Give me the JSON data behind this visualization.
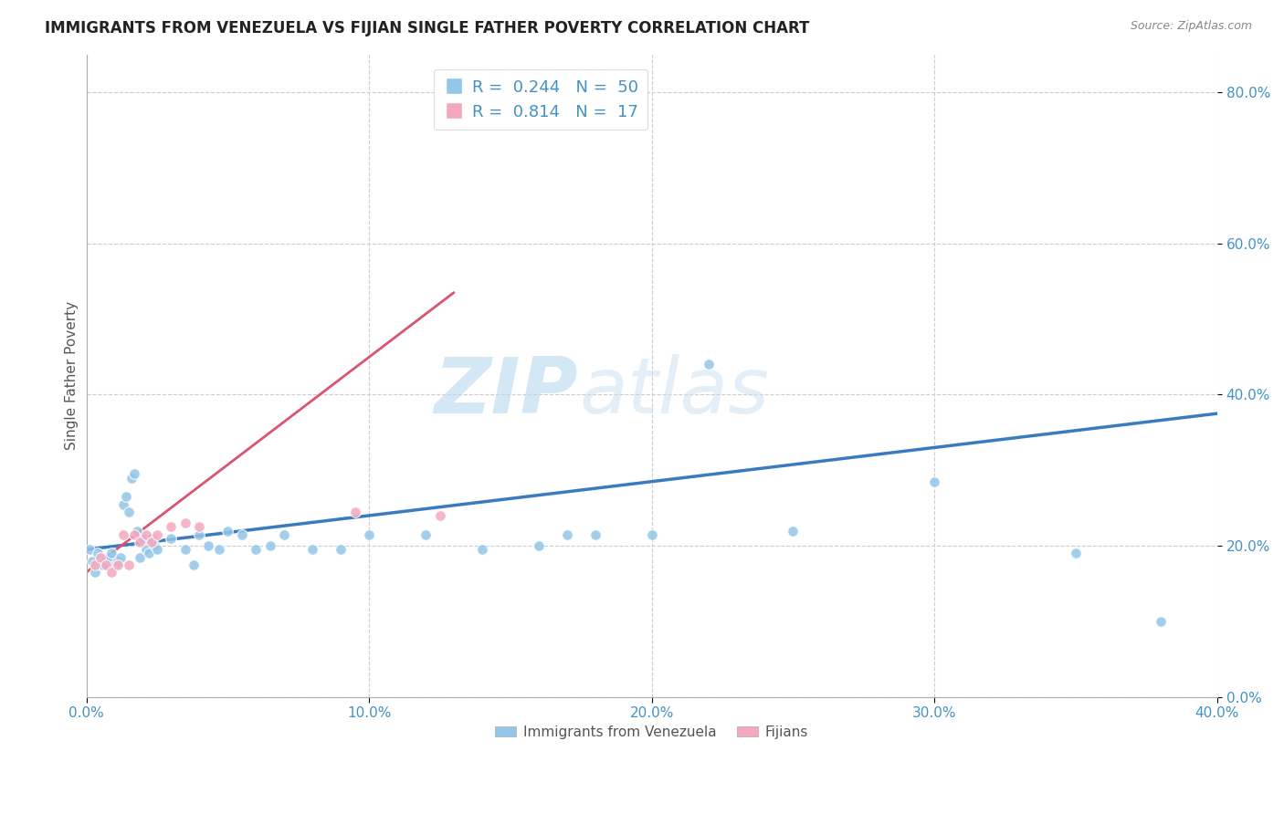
{
  "title": "IMMIGRANTS FROM VENEZUELA VS FIJIAN SINGLE FATHER POVERTY CORRELATION CHART",
  "source": "Source: ZipAtlas.com",
  "xlim": [
    0.0,
    0.4
  ],
  "ylim": [
    0.0,
    0.85
  ],
  "ylabel": "Single Father Poverty",
  "legend1_label": "Immigrants from Venezuela",
  "legend2_label": "Fijians",
  "R1": "0.244",
  "N1": "50",
  "R2": "0.814",
  "N2": "17",
  "color_blue": "#93c6e8",
  "color_pink": "#f4a8be",
  "trendline1_color": "#3a7abf",
  "trendline2_color": "#d9546e",
  "watermark_zip": "ZIP",
  "watermark_atlas": "atlas",
  "blue_points": [
    [
      0.001,
      0.195
    ],
    [
      0.002,
      0.18
    ],
    [
      0.003,
      0.165
    ],
    [
      0.004,
      0.19
    ],
    [
      0.005,
      0.175
    ],
    [
      0.006,
      0.175
    ],
    [
      0.007,
      0.185
    ],
    [
      0.008,
      0.185
    ],
    [
      0.009,
      0.19
    ],
    [
      0.01,
      0.175
    ],
    [
      0.011,
      0.18
    ],
    [
      0.012,
      0.185
    ],
    [
      0.013,
      0.255
    ],
    [
      0.014,
      0.265
    ],
    [
      0.015,
      0.245
    ],
    [
      0.016,
      0.29
    ],
    [
      0.017,
      0.295
    ],
    [
      0.018,
      0.22
    ],
    [
      0.019,
      0.185
    ],
    [
      0.02,
      0.21
    ],
    [
      0.021,
      0.195
    ],
    [
      0.022,
      0.19
    ],
    [
      0.023,
      0.21
    ],
    [
      0.024,
      0.2
    ],
    [
      0.025,
      0.195
    ],
    [
      0.03,
      0.21
    ],
    [
      0.035,
      0.195
    ],
    [
      0.038,
      0.175
    ],
    [
      0.04,
      0.215
    ],
    [
      0.043,
      0.2
    ],
    [
      0.047,
      0.195
    ],
    [
      0.05,
      0.22
    ],
    [
      0.055,
      0.215
    ],
    [
      0.06,
      0.195
    ],
    [
      0.065,
      0.2
    ],
    [
      0.07,
      0.215
    ],
    [
      0.08,
      0.195
    ],
    [
      0.09,
      0.195
    ],
    [
      0.1,
      0.215
    ],
    [
      0.12,
      0.215
    ],
    [
      0.14,
      0.195
    ],
    [
      0.16,
      0.2
    ],
    [
      0.17,
      0.215
    ],
    [
      0.18,
      0.215
    ],
    [
      0.2,
      0.215
    ],
    [
      0.22,
      0.44
    ],
    [
      0.25,
      0.22
    ],
    [
      0.3,
      0.285
    ],
    [
      0.35,
      0.19
    ],
    [
      0.38,
      0.1
    ]
  ],
  "pink_points": [
    [
      0.003,
      0.175
    ],
    [
      0.005,
      0.185
    ],
    [
      0.007,
      0.175
    ],
    [
      0.009,
      0.165
    ],
    [
      0.011,
      0.175
    ],
    [
      0.013,
      0.215
    ],
    [
      0.015,
      0.175
    ],
    [
      0.017,
      0.215
    ],
    [
      0.019,
      0.205
    ],
    [
      0.021,
      0.215
    ],
    [
      0.023,
      0.205
    ],
    [
      0.025,
      0.215
    ],
    [
      0.03,
      0.225
    ],
    [
      0.035,
      0.23
    ],
    [
      0.04,
      0.225
    ],
    [
      0.095,
      0.245
    ],
    [
      0.125,
      0.24
    ]
  ],
  "trendline1_x": [
    0.0,
    0.4
  ],
  "trendline1_y": [
    0.195,
    0.375
  ],
  "trendline2_x": [
    0.0,
    0.13
  ],
  "trendline2_y": [
    0.165,
    0.535
  ]
}
